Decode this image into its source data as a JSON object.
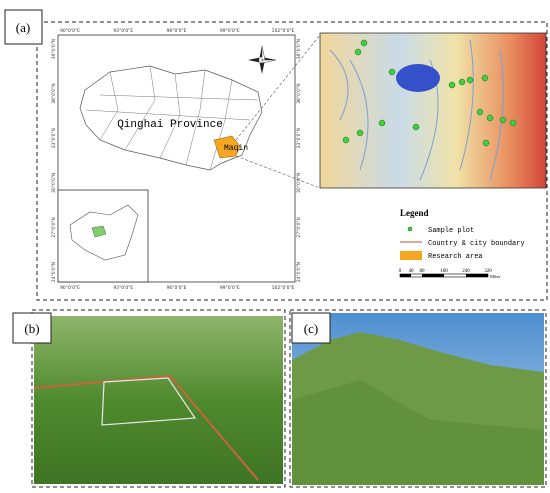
{
  "panels": {
    "a": {
      "label": "(a)",
      "top_labels": [
        "90°0'0\"E",
        "93°0'0\"E",
        "96°0'0\"E",
        "99°0'0\"E",
        "102°0'0\"E"
      ],
      "bottom_labels": [
        "90°0'0\"E",
        "93°0'0\"E",
        "96°0'0\"E",
        "99°0'0\"E",
        "102°0'0\"E"
      ],
      "left_labels": [
        "39°0'0\"N",
        "36°0'0\"N",
        "33°0'0\"N",
        "30°0'0\"N",
        "27°0'0\"N",
        "24°0'0\"N"
      ],
      "right_labels": [
        "39°0'0\"N",
        "36°0'0\"N",
        "33°0'0\"N",
        "30°0'0\"N",
        "27°0'0\"N",
        "24°0'0\"N"
      ],
      "province": "Qinghai Province",
      "county": "Maqin",
      "legend": {
        "title": "Legend",
        "items": [
          "Sample plot",
          "Country & city boundary",
          "Research area"
        ]
      },
      "scale": {
        "ticks": [
          "0",
          "40",
          "80",
          "160",
          "240",
          "320"
        ],
        "unit": "Miles"
      }
    },
    "b": {
      "label": "(b)"
    },
    "c": {
      "label": "(c)"
    }
  }
}
